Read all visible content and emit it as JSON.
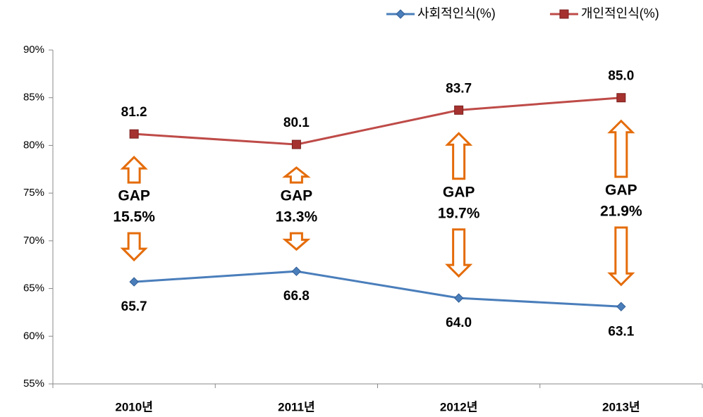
{
  "chart_data": {
    "type": "line",
    "categories": [
      "2010년",
      "2011년",
      "2012년",
      "2013년"
    ],
    "series": [
      {
        "name": "사회적인식(%)",
        "color": "#4a7ebb",
        "marker": "diamond",
        "values": [
          65.7,
          66.8,
          64.0,
          63.1
        ],
        "value_labels": [
          "65.7",
          "66.8",
          "64.0",
          "63.1"
        ]
      },
      {
        "name": "개인적인식(%)",
        "color": "#be4b48",
        "marker": "square",
        "values": [
          81.2,
          80.1,
          83.7,
          85.0
        ],
        "value_labels": [
          "81.2",
          "80.1",
          "83.7",
          "85.0"
        ]
      }
    ],
    "annotations": [
      {
        "text": "GAP",
        "value": "15.5%"
      },
      {
        "text": "GAP",
        "value": "13.3%"
      },
      {
        "text": "GAP",
        "value": "19.7%"
      },
      {
        "text": "GAP",
        "value": "21.9%"
      }
    ],
    "ylim": [
      55,
      90
    ],
    "yticks": [
      {
        "value": 55,
        "label": "55%"
      },
      {
        "value": 60,
        "label": "60%"
      },
      {
        "value": 65,
        "label": "65%"
      },
      {
        "value": 70,
        "label": "70%"
      },
      {
        "value": 75,
        "label": "75%"
      },
      {
        "value": 80,
        "label": "80%"
      },
      {
        "value": 85,
        "label": "85%"
      },
      {
        "value": 90,
        "label": "90%"
      }
    ],
    "grid": false,
    "legend": "top-right"
  }
}
